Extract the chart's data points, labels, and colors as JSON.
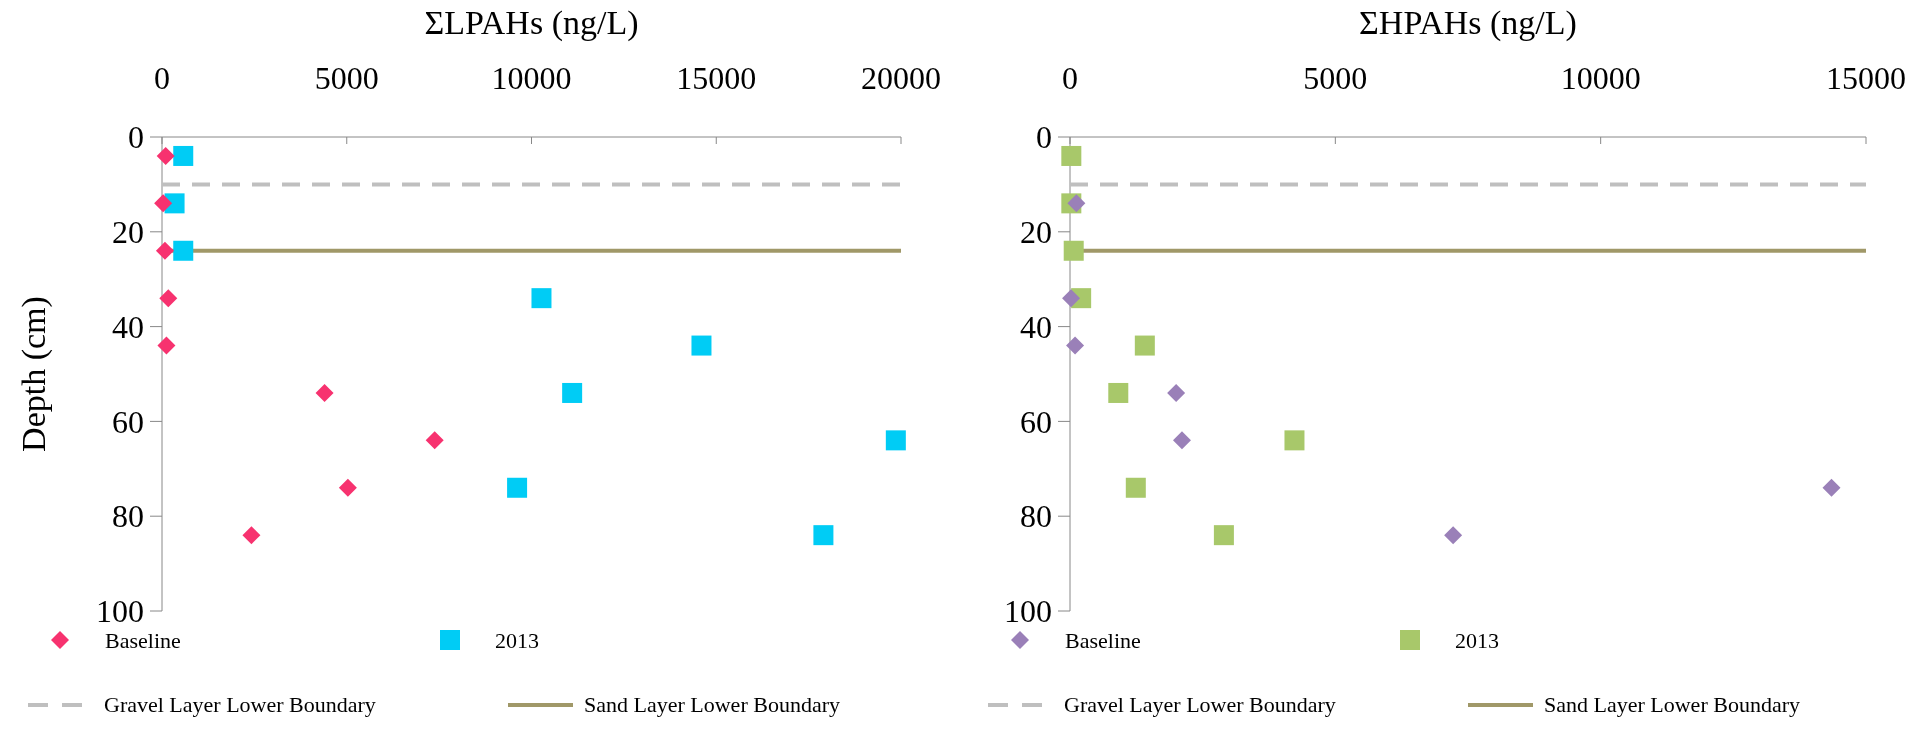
{
  "chart_data": [
    {
      "type": "scatter",
      "xlabel": "ΣLPAHs (ng/L)",
      "ylabel": "Depth (cm)",
      "xlim": [
        0,
        20000
      ],
      "xticks": [
        0,
        5000,
        10000,
        15000,
        20000
      ],
      "ylim": [
        100,
        0
      ],
      "yticks": [
        0,
        20,
        40,
        60,
        80,
        100
      ],
      "grid": false,
      "legend": "bottom",
      "series": [
        {
          "name": "Baseline",
          "color": "#f7326f",
          "marker": "diamond",
          "x": [
            100,
            30,
            80,
            170,
            120,
            4400,
            7380,
            5030,
            2420
          ],
          "values": [
            4,
            14,
            24,
            34,
            44,
            54,
            64,
            74,
            84
          ]
        },
        {
          "name": "2013",
          "color": "#00ccf5",
          "marker": "square",
          "x": [
            575,
            340,
            575,
            10270,
            14600,
            11100,
            19860,
            9610,
            17900
          ],
          "values": [
            4,
            14,
            24,
            34,
            44,
            54,
            64,
            74,
            84
          ]
        }
      ],
      "ref_lines": [
        {
          "axis": "y",
          "value": 10,
          "label": "Gravel Layer Lower Boundary",
          "color": "#bfbfbf",
          "line_style": "dashed"
        },
        {
          "axis": "y",
          "value": 24,
          "label": "Sand Layer Lower Boundary",
          "color": "#a09868",
          "line_style": "solid"
        }
      ]
    },
    {
      "type": "scatter",
      "xlabel": "ΣHPAHs (ng/L)",
      "xlim": [
        0,
        15000
      ],
      "xticks": [
        0,
        5000,
        10000,
        15000
      ],
      "ylim": [
        100,
        0
      ],
      "yticks": [
        0,
        20,
        40,
        60,
        80,
        100
      ],
      "grid": false,
      "legend": "bottom",
      "series": [
        {
          "name": "Baseline",
          "color": "#9a80b8",
          "marker": "diamond",
          "x": [
            120,
            20,
            95,
            2000,
            2110,
            14350,
            7220
          ],
          "values": [
            14,
            34,
            44,
            54,
            64,
            74,
            84
          ]
        },
        {
          "name": "2013",
          "color": "#a8c86a",
          "marker": "square",
          "x": [
            25,
            25,
            70,
            210,
            1410,
            910,
            4230,
            1240,
            2900
          ],
          "values": [
            4,
            14,
            24,
            34,
            44,
            54,
            64,
            74,
            84
          ]
        }
      ],
      "ref_lines": [
        {
          "axis": "y",
          "value": 10,
          "label": "Gravel Layer Lower Boundary",
          "color": "#bfbfbf",
          "line_style": "dashed"
        },
        {
          "axis": "y",
          "value": 24,
          "label": "Sand Layer Lower Boundary",
          "color": "#a09868",
          "line_style": "solid"
        }
      ]
    }
  ]
}
